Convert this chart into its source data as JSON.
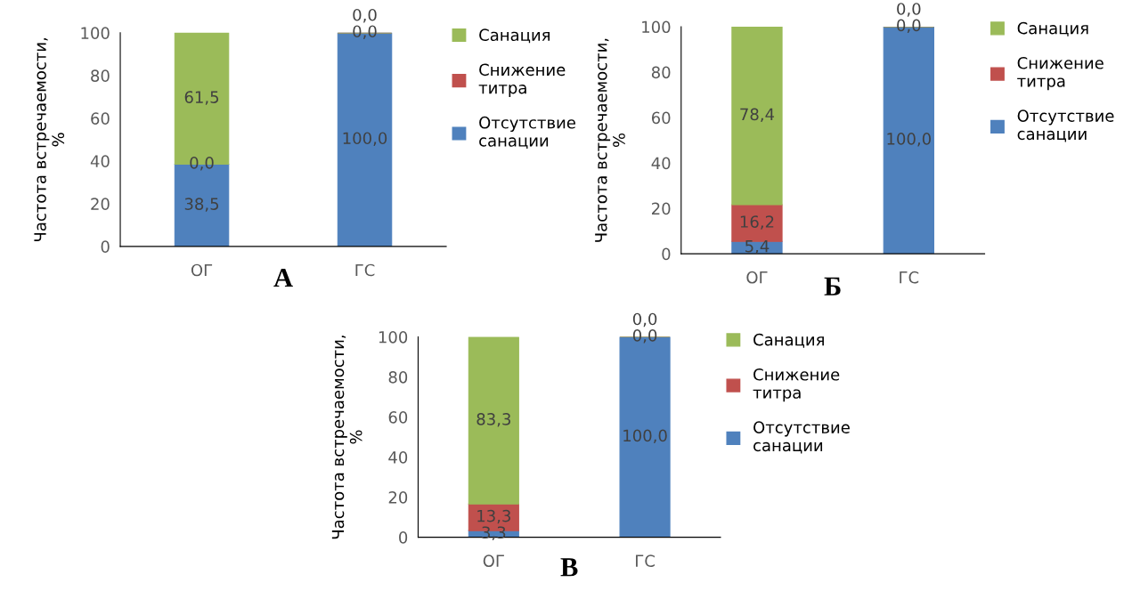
{
  "chart_data": [
    {
      "type": "bar",
      "stacked": true,
      "categories": [
        "ОГ",
        "ГС"
      ],
      "ylabel": "Частота встречаемости,\n%",
      "ylim": [
        0,
        100
      ],
      "yticks": [
        0,
        20,
        40,
        60,
        80,
        100
      ],
      "grid": false,
      "legend": "right",
      "annotations": [
        "А"
      ],
      "series": [
        {
          "name": "Отсутствие\nсанации",
          "color": "#4f81bd",
          "values": [
            38.5,
            100.0
          ],
          "value_labels": [
            "38,5",
            "100,0"
          ]
        },
        {
          "name": "Снижение\nтитра",
          "color": "#c0504d",
          "values": [
            0.0,
            0.0
          ],
          "value_labels": [
            "0,0",
            "0,0"
          ]
        },
        {
          "name": "Санация",
          "color": "#9bbb59",
          "values": [
            61.5,
            0.0
          ],
          "value_labels": [
            "61,5",
            "0,0"
          ]
        }
      ]
    },
    {
      "type": "bar",
      "stacked": true,
      "categories": [
        "ОГ",
        "ГС"
      ],
      "ylabel": "Частота встречаемости,\n%",
      "ylim": [
        0,
        100
      ],
      "yticks": [
        0,
        20,
        40,
        60,
        80,
        100
      ],
      "grid": false,
      "legend": "right",
      "annotations": [
        "Б"
      ],
      "series": [
        {
          "name": "Отсутствие\nсанации",
          "color": "#4f81bd",
          "values": [
            5.4,
            100.0
          ],
          "value_labels": [
            "5,4",
            "100,0"
          ]
        },
        {
          "name": "Снижение\nтитра",
          "color": "#c0504d",
          "values": [
            16.2,
            0.0
          ],
          "value_labels": [
            "16,2",
            "0,0"
          ]
        },
        {
          "name": "Санация",
          "color": "#9bbb59",
          "values": [
            78.4,
            0.0
          ],
          "value_labels": [
            "78,4",
            "0,0"
          ]
        }
      ]
    },
    {
      "type": "bar",
      "stacked": true,
      "categories": [
        "ОГ",
        "ГС"
      ],
      "ylabel": "Частота встречаемости,\n%",
      "ylim": [
        0,
        100
      ],
      "yticks": [
        0,
        20,
        40,
        60,
        80,
        100
      ],
      "grid": false,
      "legend": "right",
      "annotations": [
        "В"
      ],
      "series": [
        {
          "name": "Отсутствие\nсанации",
          "color": "#4f81bd",
          "values": [
            3.3,
            100.0
          ],
          "value_labels": [
            "3,3",
            "100,0"
          ]
        },
        {
          "name": "Снижение\nтитра",
          "color": "#c0504d",
          "values": [
            13.3,
            0.0
          ],
          "value_labels": [
            "13,3",
            "0,0"
          ]
        },
        {
          "name": "Санация",
          "color": "#9bbb59",
          "values": [
            83.3,
            0.0
          ],
          "value_labels": [
            "83,3",
            "0,0"
          ]
        }
      ]
    }
  ]
}
